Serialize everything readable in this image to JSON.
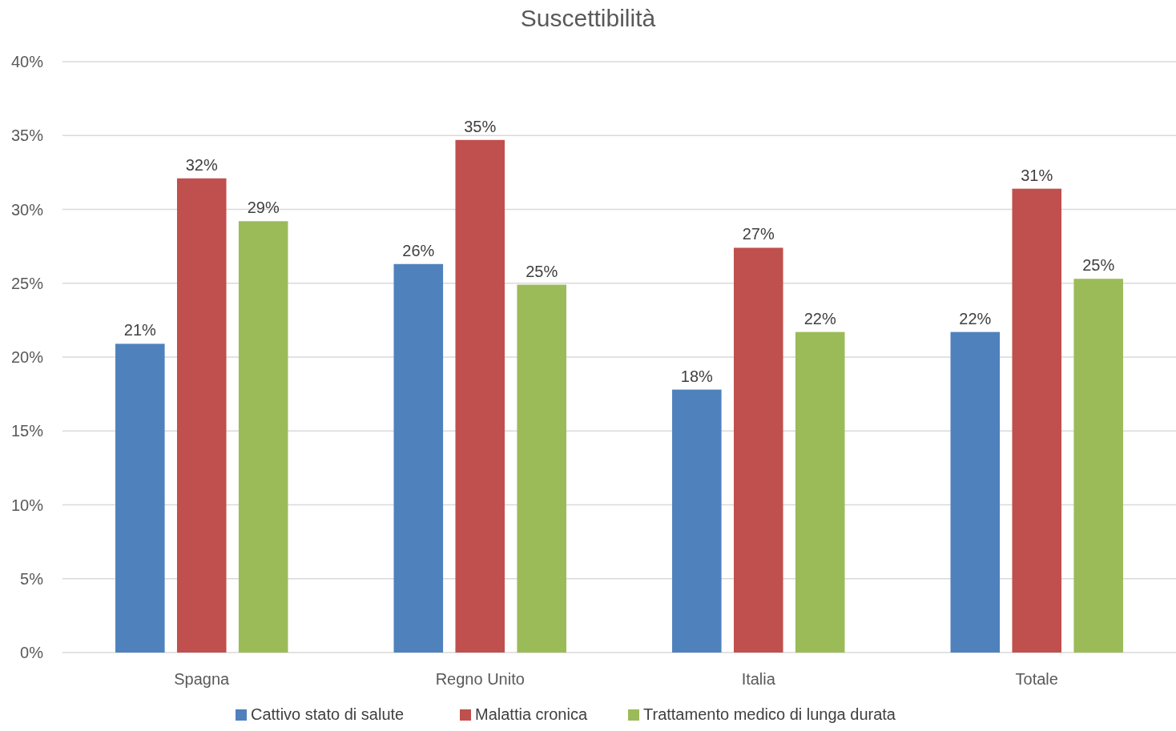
{
  "chart_data": {
    "type": "bar",
    "title": "Suscettibilità",
    "categories": [
      "Spagna",
      "Regno Unito",
      "Italia",
      "Totale"
    ],
    "series": [
      {
        "name": "Cattivo stato di salute",
        "color": "#4f81bd",
        "values": [
          20.9,
          26.3,
          17.8,
          21.7
        ],
        "value_labels": [
          "21%",
          "26%",
          "18%",
          "22%"
        ]
      },
      {
        "name": "Malattia cronica",
        "color": "#c0504d",
        "values": [
          32.1,
          34.7,
          27.4,
          31.4
        ],
        "value_labels": [
          "32%",
          "35%",
          "27%",
          "31%"
        ]
      },
      {
        "name": "Trattamento medico di lunga durata",
        "color": "#9bbb59",
        "values": [
          29.2,
          24.9,
          21.7,
          25.3
        ],
        "value_labels": [
          "29%",
          "25%",
          "22%",
          "25%"
        ]
      }
    ],
    "ylim": [
      0,
      40
    ],
    "yticks": [
      {
        "value": 0,
        "label": "0%"
      },
      {
        "value": 5,
        "label": "5%"
      },
      {
        "value": 10,
        "label": "10%"
      },
      {
        "value": 15,
        "label": "15%"
      },
      {
        "value": 20,
        "label": "20%"
      },
      {
        "value": 25,
        "label": "25%"
      },
      {
        "value": 30,
        "label": "30%"
      },
      {
        "value": 35,
        "label": "35%"
      },
      {
        "value": 40,
        "label": "40%"
      }
    ],
    "grid": "y",
    "legend": "bottom"
  }
}
